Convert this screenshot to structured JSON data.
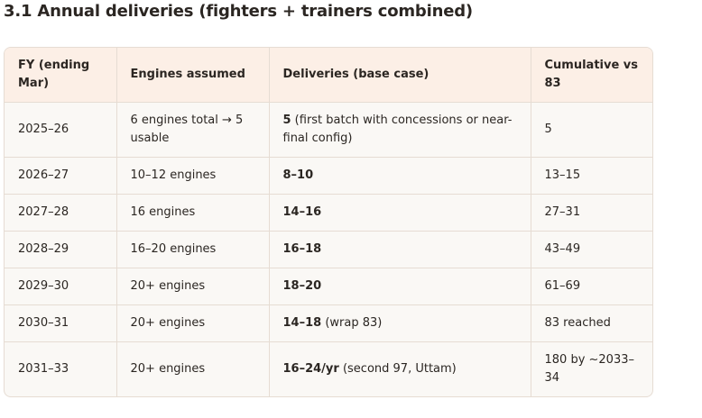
{
  "heading": "3.1 Annual deliveries (fighters + trainers combined)",
  "table": {
    "header": [
      "FY (ending Mar)",
      "Engines assumed",
      "Deliveries (base case)",
      "Cumulative vs 83"
    ],
    "rows": [
      [
        "2025–26",
        "6 engines total → 5 usable",
        {
          "bold": "5",
          "rest": " (first batch with concessions or near-final config)"
        },
        "5"
      ],
      [
        "2026–27",
        "10–12 engines",
        {
          "bold": "8–10"
        },
        "13–15"
      ],
      [
        "2027–28",
        "16 engines",
        {
          "bold": "14–16"
        },
        "27–31"
      ],
      [
        "2028–29",
        "16–20 engines",
        {
          "bold": "16–18"
        },
        "43–49"
      ],
      [
        "2029–30",
        "20+ engines",
        {
          "bold": "18–20"
        },
        "61–69"
      ],
      [
        "2030–31",
        "20+ engines",
        {
          "bold": "14–18",
          "rest": " (wrap 83)"
        },
        "83 reached"
      ],
      [
        "2031–33",
        "20+ engines",
        {
          "bold": "16–24/yr",
          "rest": " (second 97, Uttam)"
        },
        "180 by ~2033–34"
      ]
    ]
  }
}
